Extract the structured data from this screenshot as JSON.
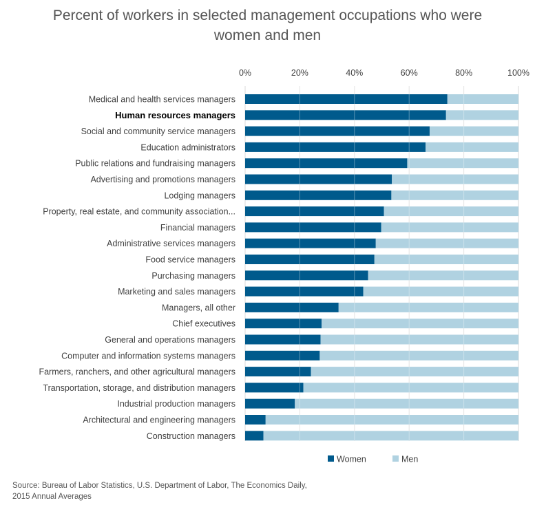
{
  "title": {
    "line1": "Percent of workers in selected management occupations who were",
    "line2": "women and men"
  },
  "source": {
    "line1": "Source: Bureau of Labor Statistics, U.S. Department of Labor, The Economics Daily,",
    "line2": "2015 Annual Averages"
  },
  "chart_data": {
    "type": "bar",
    "orientation": "horizontal",
    "stacked": true,
    "categories": [
      "Medical and health services managers",
      "Human resources managers",
      "Social and community service managers",
      "Education administrators",
      "Public relations and fundraising managers",
      "Advertising and promotions managers",
      "Lodging managers",
      "Property, real estate, and community association...",
      "Financial managers",
      "Administrative services managers",
      "Food service managers",
      "Purchasing managers",
      "Marketing and sales managers",
      "Managers, all other",
      "Chief executives",
      "General and operations managers",
      "Computer and information systems managers",
      "Farmers, ranchers, and other agricultural managers",
      "Transportation, storage, and distribution managers",
      "Industrial production managers",
      "Architectural and engineering managers",
      "Construction managers"
    ],
    "highlighted_category": "Human resources managers",
    "series": [
      {
        "name": "Women",
        "color": "#005a8c",
        "values": [
          74,
          73.5,
          67.5,
          66,
          59.3,
          53.7,
          53.5,
          50.8,
          49.8,
          47.8,
          47.3,
          45,
          43.2,
          34.2,
          28,
          27.6,
          27.3,
          24.1,
          21.3,
          18.2,
          7.5,
          6.7
        ]
      },
      {
        "name": "Men",
        "color": "#b0d2e1",
        "values": [
          26,
          26.5,
          32.5,
          34,
          40.7,
          46.3,
          46.5,
          49.2,
          50.2,
          52.2,
          52.7,
          55,
          56.8,
          65.8,
          72,
          72.4,
          72.7,
          75.9,
          78.7,
          81.8,
          92.5,
          93.3
        ]
      }
    ],
    "x_ticks": [
      "0%",
      "20%",
      "40%",
      "60%",
      "80%",
      "100%"
    ],
    "xlim": [
      0,
      100
    ],
    "xaxis_position": "top",
    "grid": true,
    "legend_position": "bottom"
  }
}
